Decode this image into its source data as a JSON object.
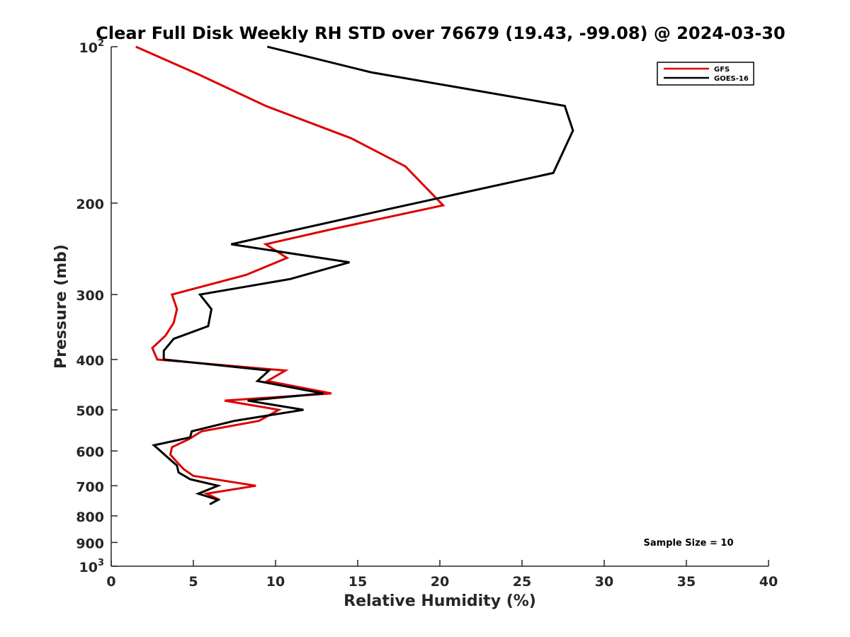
{
  "chart_data": {
    "type": "line",
    "title": "Clear Full Disk Weekly RH STD over 76679 (19.43, -99.08) @ 2024-03-30",
    "xlabel": "Relative Humidity (%)",
    "ylabel": "Pressure (mb)",
    "xlim": [
      0,
      40
    ],
    "ylim": [
      100,
      1000
    ],
    "yscale": "log",
    "y_reversed": true,
    "grid": false,
    "legend_position": "top-right",
    "x_ticks": [
      "0",
      "5",
      "10",
      "15",
      "20",
      "25",
      "30",
      "35",
      "40"
    ],
    "x_tick_values": [
      0,
      5,
      10,
      15,
      20,
      25,
      30,
      35,
      40
    ],
    "y_tick_values": [
      100,
      200,
      300,
      400,
      500,
      600,
      700,
      800,
      900,
      1000
    ],
    "y_ticks": [
      {
        "base": "10",
        "sup": "2"
      },
      {
        "base": "200",
        "sup": ""
      },
      {
        "base": "300",
        "sup": ""
      },
      {
        "base": "400",
        "sup": ""
      },
      {
        "base": "500",
        "sup": ""
      },
      {
        "base": "600",
        "sup": ""
      },
      {
        "base": "700",
        "sup": ""
      },
      {
        "base": "800",
        "sup": ""
      },
      {
        "base": "900",
        "sup": ""
      },
      {
        "base": "10",
        "sup": "3"
      }
    ],
    "series": [
      {
        "name": "GFS",
        "color": "#dd0000",
        "points": [
          [
            1.5,
            100
          ],
          [
            5.3,
            113
          ],
          [
            9.4,
            130
          ],
          [
            14.6,
            150
          ],
          [
            17.9,
            170
          ],
          [
            20.2,
            202
          ],
          [
            13.3,
            225
          ],
          [
            9.4,
            240
          ],
          [
            10.7,
            255
          ],
          [
            8.2,
            275
          ],
          [
            3.7,
            300
          ],
          [
            4.0,
            320
          ],
          [
            3.8,
            340
          ],
          [
            3.3,
            360
          ],
          [
            2.5,
            380
          ],
          [
            2.8,
            400
          ],
          [
            10.6,
            420
          ],
          [
            9.5,
            440
          ],
          [
            13.4,
            465
          ],
          [
            6.9,
            480
          ],
          [
            10.2,
            500
          ],
          [
            9.0,
            525
          ],
          [
            5.5,
            550
          ],
          [
            4.7,
            570
          ],
          [
            3.7,
            590
          ],
          [
            3.6,
            610
          ],
          [
            4.0,
            630
          ],
          [
            4.4,
            650
          ],
          [
            5.0,
            670
          ],
          [
            8.8,
            700
          ],
          [
            5.8,
            725
          ],
          [
            6.6,
            745
          ]
        ]
      },
      {
        "name": "GOES-16",
        "color": "#000000",
        "points": [
          [
            9.5,
            100
          ],
          [
            15.8,
            112
          ],
          [
            27.6,
            130
          ],
          [
            28.1,
            145
          ],
          [
            26.9,
            175
          ],
          [
            17.0,
            205
          ],
          [
            7.3,
            240
          ],
          [
            14.5,
            260
          ],
          [
            10.9,
            280
          ],
          [
            5.4,
            300
          ],
          [
            6.1,
            320
          ],
          [
            5.9,
            345
          ],
          [
            3.8,
            365
          ],
          [
            3.2,
            385
          ],
          [
            3.2,
            400
          ],
          [
            9.6,
            420
          ],
          [
            8.9,
            440
          ],
          [
            12.9,
            465
          ],
          [
            8.3,
            480
          ],
          [
            11.7,
            500
          ],
          [
            7.5,
            525
          ],
          [
            4.9,
            550
          ],
          [
            4.8,
            565
          ],
          [
            2.6,
            585
          ],
          [
            3.0,
            600
          ],
          [
            3.5,
            620
          ],
          [
            4.0,
            640
          ],
          [
            4.1,
            660
          ],
          [
            4.8,
            680
          ],
          [
            6.5,
            700
          ],
          [
            5.3,
            725
          ],
          [
            6.5,
            745
          ],
          [
            6.0,
            760
          ]
        ]
      }
    ],
    "annotation": "Sample Size = 10"
  }
}
